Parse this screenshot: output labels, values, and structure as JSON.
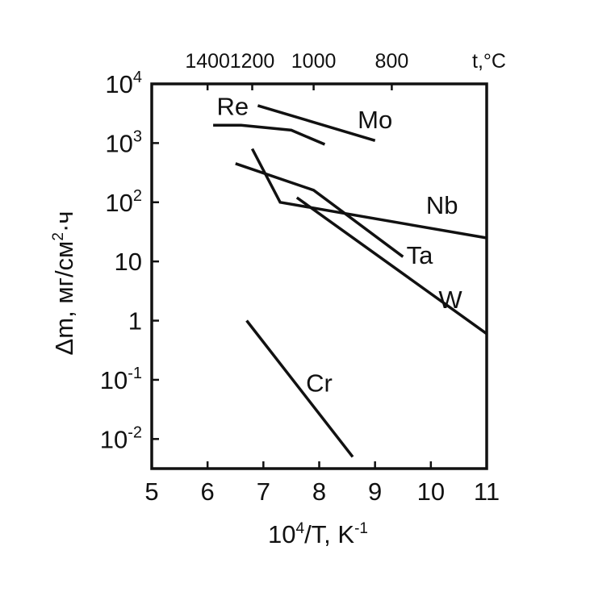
{
  "chart_data": {
    "type": "line",
    "xlabel": {
      "main": "10",
      "sup": "4",
      "rest": "/T, K",
      "sup2": "-1"
    },
    "ylabel": {
      "main": "Δm, мг/см",
      "sup": "2",
      "rest": "·ч"
    },
    "top_axis_unit": "t,°C",
    "xlim": [
      5,
      11
    ],
    "ylim": [
      -2.5,
      4
    ],
    "y_scale": "log",
    "grid": false,
    "x_ticks": [
      {
        "value": 5,
        "label": "5"
      },
      {
        "value": 6,
        "label": "6"
      },
      {
        "value": 7,
        "label": "7"
      },
      {
        "value": 8,
        "label": "8"
      },
      {
        "value": 9,
        "label": "9"
      },
      {
        "value": 10,
        "label": "10"
      },
      {
        "value": 11,
        "label": "11"
      }
    ],
    "y_ticks": [
      {
        "exp": 4,
        "base": "10",
        "sup": "4"
      },
      {
        "exp": 3,
        "base": "10",
        "sup": "3"
      },
      {
        "exp": 2,
        "base": "10",
        "sup": "2"
      },
      {
        "exp": 1,
        "base": "10",
        "sup": ""
      },
      {
        "exp": 0,
        "base": "1",
        "sup": ""
      },
      {
        "exp": -1,
        "base": "10",
        "sup": "-1"
      },
      {
        "exp": -2,
        "base": "10",
        "sup": "-2"
      }
    ],
    "top_ticks": [
      {
        "x": 6,
        "label": "1400"
      },
      {
        "x": 6.8,
        "label": "1200"
      },
      {
        "x": 7.9,
        "label": "1000"
      },
      {
        "x": 9.3,
        "label": "800"
      }
    ],
    "series": [
      {
        "name": "Re",
        "points": [
          [
            6.1,
            2000
          ],
          [
            6.6,
            2000
          ],
          [
            7.5,
            1650
          ],
          [
            8.1,
            950
          ]
        ],
        "label_pos": [
          6.45,
          4200
        ]
      },
      {
        "name": "Mo",
        "points": [
          [
            6.9,
            4300
          ],
          [
            9,
            1100
          ]
        ],
        "label_pos": [
          9,
          2500
        ]
      },
      {
        "name": "Nb",
        "points": [
          [
            6.8,
            800
          ],
          [
            7.3,
            100
          ],
          [
            11,
            25
          ]
        ],
        "label_pos": [
          10.2,
          90
        ]
      },
      {
        "name": "Ta",
        "points": [
          [
            6.5,
            450
          ],
          [
            7.9,
            160
          ],
          [
            9.5,
            12
          ]
        ],
        "label_pos": [
          9.8,
          13
        ]
      },
      {
        "name": "W",
        "points": [
          [
            7.6,
            120
          ],
          [
            11,
            0.6
          ]
        ],
        "label_pos": [
          10.35,
          2.3
        ]
      },
      {
        "name": "Cr",
        "points": [
          [
            6.7,
            1.0
          ],
          [
            8.6,
            0.005
          ]
        ],
        "label_pos": [
          8.0,
          0.09
        ]
      }
    ]
  }
}
